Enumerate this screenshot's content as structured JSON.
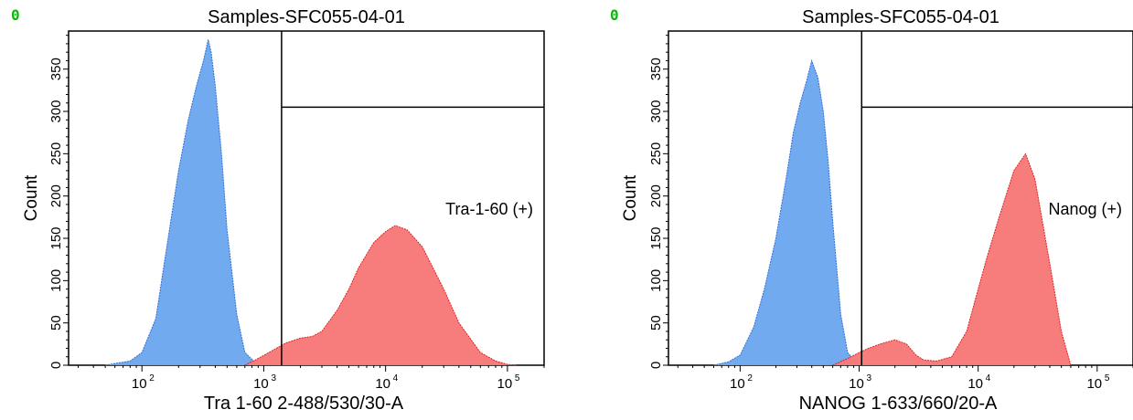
{
  "chart_data": [
    {
      "type": "histogram",
      "corner_label": "0",
      "title": "Samples-SFC055-04-01",
      "xlabel": "Tra 1-60 2-488/530/30-A",
      "ylabel": "Count",
      "x_scale": "log",
      "xlim": [
        25,
        200000
      ],
      "ylim": [
        0,
        395
      ],
      "yticks": [
        0,
        50,
        100,
        150,
        200,
        250,
        300,
        350
      ],
      "xticks": [
        {
          "value": 100,
          "base": "10",
          "exp": "2"
        },
        {
          "value": 1000,
          "base": "10",
          "exp": "3"
        },
        {
          "value": 10000,
          "base": "10",
          "exp": "4"
        },
        {
          "value": 100000,
          "base": "10",
          "exp": "5"
        }
      ],
      "gate": {
        "label": "Tra-1-60 (+)",
        "x_start": 1400,
        "y_top": 305
      },
      "series": [
        {
          "color": "#6fa8f0",
          "edge": "#2e6fd8",
          "x": [
            50,
            60,
            80,
            100,
            130,
            160,
            200,
            240,
            280,
            320,
            350,
            370,
            400,
            450,
            500,
            600,
            700,
            900
          ],
          "y": [
            0,
            2,
            5,
            15,
            55,
            140,
            230,
            290,
            330,
            360,
            385,
            370,
            330,
            250,
            160,
            60,
            15,
            0
          ]
        },
        {
          "color": "#f77a7a",
          "edge": "#e02020",
          "x": [
            700,
            900,
            1200,
            1500,
            2000,
            2500,
            3000,
            4000,
            5000,
            6000,
            8000,
            10000,
            12000,
            15000,
            20000,
            30000,
            40000,
            60000,
            80000,
            100000,
            120000
          ],
          "y": [
            0,
            8,
            18,
            26,
            32,
            34,
            40,
            65,
            90,
            115,
            145,
            158,
            165,
            160,
            140,
            90,
            50,
            15,
            5,
            1,
            0
          ]
        }
      ]
    },
    {
      "type": "histogram",
      "corner_label": "0",
      "title": "Samples-SFC055-04-01",
      "xlabel": "NANOG 1-633/660/20-A",
      "ylabel": "Count",
      "x_scale": "log",
      "xlim": [
        25,
        200000
      ],
      "ylim": [
        0,
        395
      ],
      "yticks": [
        0,
        50,
        100,
        150,
        200,
        250,
        300,
        350
      ],
      "xticks": [
        {
          "value": 100,
          "base": "10",
          "exp": "2"
        },
        {
          "value": 1000,
          "base": "10",
          "exp": "3"
        },
        {
          "value": 10000,
          "base": "10",
          "exp": "4"
        },
        {
          "value": 100000,
          "base": "10",
          "exp": "5"
        }
      ],
      "gate": {
        "label": "Nanog (+)",
        "x_start": 1050,
        "y_top": 305
      },
      "series": [
        {
          "color": "#6fa8f0",
          "edge": "#2e6fd8",
          "x": [
            60,
            80,
            100,
            130,
            160,
            200,
            240,
            280,
            320,
            360,
            400,
            450,
            500,
            550,
            600,
            700,
            800,
            1000
          ],
          "y": [
            0,
            4,
            12,
            45,
            90,
            150,
            215,
            275,
            310,
            335,
            360,
            340,
            300,
            240,
            170,
            60,
            15,
            0
          ]
        },
        {
          "color": "#f77a7a",
          "edge": "#e02020",
          "x": [
            600,
            800,
            1000,
            1200,
            1500,
            2000,
            2500,
            3000,
            3500,
            4500,
            6000,
            8000,
            10000,
            12000,
            15000,
            20000,
            25000,
            30000,
            40000,
            50000,
            60000
          ],
          "y": [
            0,
            8,
            15,
            20,
            25,
            30,
            25,
            12,
            6,
            5,
            10,
            40,
            90,
            130,
            175,
            230,
            250,
            220,
            120,
            40,
            0
          ]
        }
      ]
    }
  ]
}
